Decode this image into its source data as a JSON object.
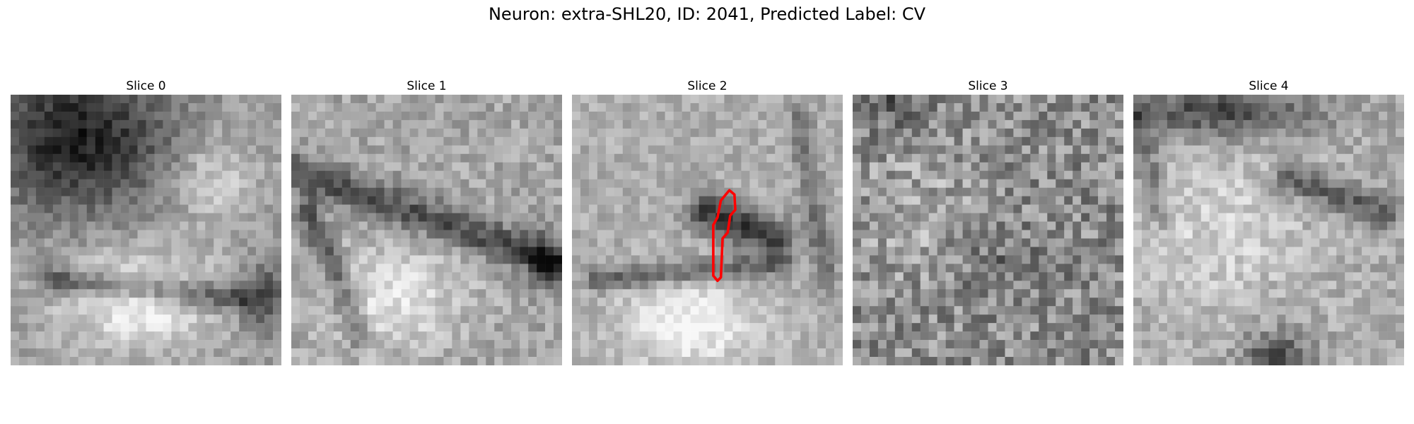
{
  "figure": {
    "title": "Neuron: extra-SHL20, ID: 2041, Predicted Label: CV"
  },
  "panels": [
    {
      "title": "Slice 0"
    },
    {
      "title": "Slice 1"
    },
    {
      "title": "Slice 2"
    },
    {
      "title": "Slice 3"
    },
    {
      "title": "Slice 4"
    }
  ],
  "colors": {
    "contour": "#ff0000",
    "background": "#ffffff"
  },
  "colormap": "gray"
}
